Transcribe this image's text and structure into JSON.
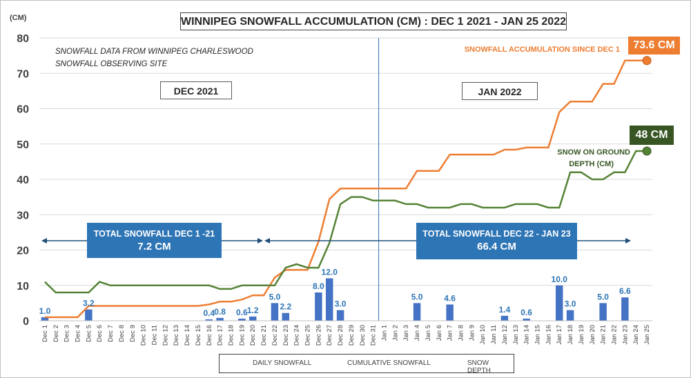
{
  "title": "WINNIPEG SNOWFALL ACCUMULATION (CM) : DEC 1 2021 - JAN 25 2022",
  "y_unit_label": "(CM)",
  "note_lines": [
    "SNOWFALL DATA FROM WINNIPEG CHARLESWOOD",
    "SNOWFALL OBSERVING SITE"
  ],
  "month_labels": [
    "DEC 2021",
    "JAN 2022"
  ],
  "total_boxes": [
    {
      "line1": "TOTAL SNOWFALL DEC 1 -21",
      "line2": "7.2 CM"
    },
    {
      "line1": "TOTAL SNOWFALL DEC  22 - JAN 23",
      "line2": "66.4 CM"
    }
  ],
  "annotations": {
    "cumulative_label": "SNOWFALL ACCUMULATION SINCE DEC 1",
    "cumulative_badge": "73.6 CM",
    "depth_label_line1": "SNOW ON GROUND",
    "depth_label_line2": "DEPTH (CM)",
    "depth_badge": "48 CM"
  },
  "legend": [
    "DAILY SNOWFALL",
    "CUMULATIVE SNOWFALL",
    "SNOW DEPTH"
  ],
  "colors": {
    "bar": "#4472c4",
    "cumulative": "#ed7d31",
    "depth": "#548235",
    "bar_label": "#2e75b6",
    "depth_badge": "#375623",
    "cum_badge": "#ed7d31",
    "box": "#2e75b6"
  },
  "chart_data": {
    "type": "bar+line",
    "title": "WINNIPEG SNOWFALL ACCUMULATION (CM) : DEC 1 2021 - JAN 25 2022",
    "ylabel": "(CM)",
    "ylim": [
      0,
      80
    ],
    "yticks": [
      0,
      10,
      20,
      30,
      40,
      50,
      60,
      70,
      80
    ],
    "categories": [
      "Dec 1",
      "Dec 2",
      "Dec 3",
      "Dec 4",
      "Dec 5",
      "Dec 6",
      "Dec 7",
      "Dec 8",
      "Dec 9",
      "Dec 10",
      "Dec 11",
      "Dec 12",
      "Dec 13",
      "Dec 14",
      "Dec 15",
      "Dec 16",
      "Dec 17",
      "Dec 18",
      "Dec 19",
      "Dec 20",
      "Dec 21",
      "Dec 22",
      "Dec 23",
      "Dec 24",
      "Dec 25",
      "Dec 26",
      "Dec 27",
      "Dec 28",
      "Dec 29",
      "Dec 30",
      "Dec 31",
      "Jan 1",
      "Jan 2",
      "Jan 3",
      "Jan 4",
      "Jan 5",
      "Jan 6",
      "Jan 7",
      "Jan 8",
      "Jan 9",
      "Jan 10",
      "Jan 11",
      "Jan 12",
      "Jan 13",
      "Jan 14",
      "Jan 15",
      "Jan 16",
      "Jan 17",
      "Jan 18",
      "Jan 19",
      "Jan 20",
      "Jan 21",
      "Jan 22",
      "Jan 23",
      "Jan 24",
      "Jan 25"
    ],
    "series": [
      {
        "name": "DAILY SNOWFALL",
        "kind": "bar",
        "values": [
          1.0,
          0,
          0,
          0,
          3.2,
          0,
          0,
          0,
          0,
          0,
          0,
          0,
          0,
          0,
          0,
          0.4,
          0.8,
          0,
          0.6,
          1.2,
          0,
          5.0,
          2.2,
          0,
          0,
          8.0,
          12.0,
          3.0,
          0,
          0,
          0,
          0,
          0,
          0,
          5.0,
          0,
          0,
          4.6,
          0,
          0,
          0,
          0,
          1.4,
          0,
          0.6,
          0,
          0,
          10.0,
          3.0,
          0,
          0,
          5.0,
          0,
          6.6,
          0,
          0
        ]
      },
      {
        "name": "CUMULATIVE SNOWFALL",
        "kind": "line",
        "values": [
          1.0,
          1.0,
          1.0,
          1.0,
          4.2,
          4.2,
          4.2,
          4.2,
          4.2,
          4.2,
          4.2,
          4.2,
          4.2,
          4.2,
          4.2,
          4.6,
          5.4,
          5.4,
          6.0,
          7.2,
          7.2,
          12.2,
          14.4,
          14.4,
          14.4,
          22.4,
          34.4,
          37.4,
          37.4,
          37.4,
          37.4,
          37.4,
          37.4,
          37.4,
          42.4,
          42.4,
          42.4,
          47.0,
          47.0,
          47.0,
          47.0,
          47.0,
          48.4,
          48.4,
          49.0,
          49.0,
          49.0,
          59.0,
          62.0,
          62.0,
          62.0,
          67.0,
          67.0,
          73.6,
          73.6,
          73.6
        ]
      },
      {
        "name": "SNOW DEPTH",
        "kind": "line",
        "values": [
          11,
          8,
          8,
          8,
          8,
          11,
          10,
          10,
          10,
          10,
          10,
          10,
          10,
          10,
          10,
          10,
          9,
          9,
          10,
          10,
          10,
          10,
          15,
          16,
          15,
          15,
          22,
          33,
          35,
          35,
          34,
          34,
          34,
          33,
          33,
          32,
          32,
          32,
          33,
          33,
          32,
          32,
          32,
          33,
          33,
          33,
          32,
          32,
          42,
          42,
          40,
          40,
          42,
          42,
          48,
          48
        ]
      }
    ],
    "bar_labels": [
      {
        "category": "Dec 1",
        "text": "1.0"
      },
      {
        "category": "Dec 5",
        "text": "3.2"
      },
      {
        "category": "Dec 16",
        "text": "0.4"
      },
      {
        "category": "Dec 17",
        "text": "0.8"
      },
      {
        "category": "Dec 19",
        "text": "0.6"
      },
      {
        "category": "Dec 20",
        "text": "1.2"
      },
      {
        "category": "Dec 22",
        "text": "5.0"
      },
      {
        "category": "Dec 23",
        "text": "2.2"
      },
      {
        "category": "Dec 26",
        "text": "8.0"
      },
      {
        "category": "Dec 27",
        "text": "12.0"
      },
      {
        "category": "Dec 28",
        "text": "3.0"
      },
      {
        "category": "Jan 4",
        "text": "5.0"
      },
      {
        "category": "Jan 7",
        "text": "4.6"
      },
      {
        "category": "Jan 12",
        "text": "1.4"
      },
      {
        "category": "Jan 14",
        "text": "0.6"
      },
      {
        "category": "Jan 17",
        "text": "10.0"
      },
      {
        "category": "Jan 18",
        "text": "3.0"
      },
      {
        "category": "Jan 21",
        "text": "5.0"
      },
      {
        "category": "Jan 23",
        "text": "6.6"
      }
    ]
  }
}
